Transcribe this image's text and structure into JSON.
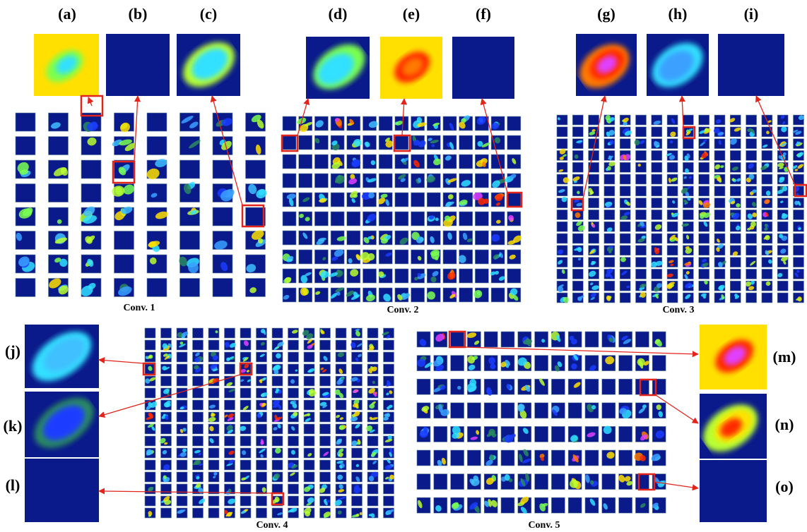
{
  "panels": {
    "labels": [
      "(a)",
      "(b)",
      "(c)",
      "(d)",
      "(e)",
      "(f)",
      "(g)",
      "(h)",
      "(i)",
      "(j)",
      "(k)",
      "(l)",
      "(m)",
      "(n)",
      "(o)"
    ]
  },
  "layers": [
    "Conv. 1",
    "Conv. 2",
    "Conv. 3",
    "Conv. 4",
    "Conv. 5"
  ]
}
